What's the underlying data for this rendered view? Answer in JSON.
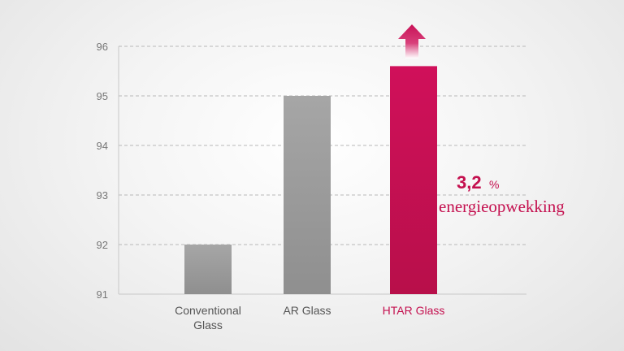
{
  "chart_data": {
    "type": "bar",
    "categories": [
      "Conventional Glass",
      "AR Glass",
      "HTAR Glass"
    ],
    "category_lines": [
      [
        "Conventional",
        "Glass"
      ],
      [
        "AR Glass"
      ],
      [
        "HTAR Glass"
      ]
    ],
    "values": [
      92.0,
      95.0,
      95.6
    ],
    "ylim": [
      91,
      96
    ],
    "yticks": [
      91,
      92,
      93,
      94,
      95,
      96
    ],
    "grid": true,
    "title": "",
    "xlabel": "",
    "ylabel": "",
    "highlight_index": 2,
    "colors": {
      "bar": "#9e9e9e",
      "highlight": "#c4104f",
      "axis": "#c8c8c8",
      "grid": "#b8b8b8",
      "tick_text": "#777777",
      "label_text": "#555555"
    },
    "annotation": {
      "value": "3,2",
      "unit": "%",
      "text": "energieopwekking"
    }
  }
}
